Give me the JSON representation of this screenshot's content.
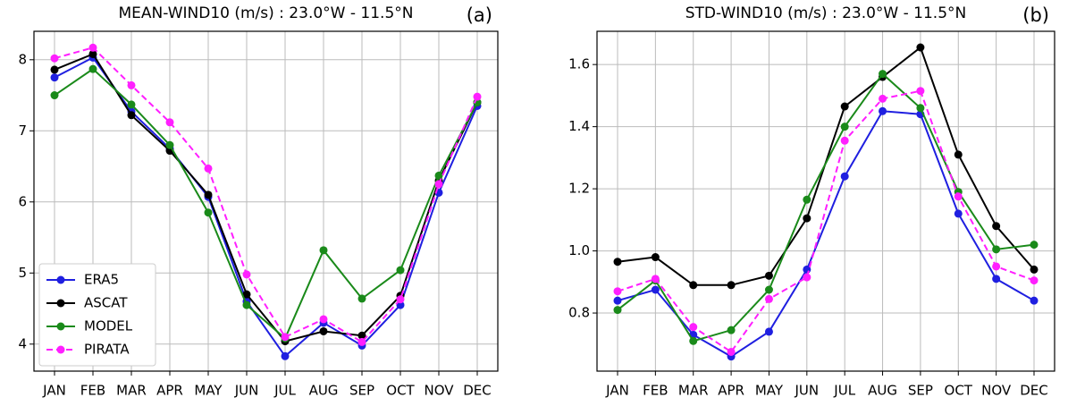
{
  "chart_data": [
    {
      "type": "line",
      "title": "MEAN-WIND10 (m/s) : 23.0°W - 11.5°N",
      "annotation": "(a)",
      "categories": [
        "JAN",
        "FEB",
        "MAR",
        "APR",
        "MAY",
        "JUN",
        "JUL",
        "AUG",
        "SEP",
        "OCT",
        "NOV",
        "DEC"
      ],
      "ylim": [
        3.62,
        8.4
      ],
      "yticks": [
        4,
        5,
        6,
        7,
        8
      ],
      "grid": true,
      "legend": "lower left",
      "series": [
        {
          "name": "ERA5",
          "color": "#1f1fe0",
          "linestyle": "solid",
          "values": [
            7.75,
            8.03,
            7.27,
            6.75,
            6.07,
            4.6,
            3.83,
            4.3,
            3.98,
            4.55,
            6.13,
            7.35
          ]
        },
        {
          "name": "ASCAT",
          "color": "#000000",
          "linestyle": "solid",
          "values": [
            7.86,
            8.08,
            7.22,
            6.72,
            6.1,
            4.7,
            4.04,
            4.18,
            4.12,
            4.68,
            6.3,
            7.4
          ]
        },
        {
          "name": "MODEL",
          "color": "#1a8a1a",
          "linestyle": "solid",
          "values": [
            7.5,
            7.87,
            7.37,
            6.8,
            5.85,
            4.55,
            4.08,
            5.32,
            4.64,
            5.04,
            6.37,
            7.4
          ]
        },
        {
          "name": "PIRATA",
          "color": "#ff1fff",
          "linestyle": "dashed",
          "values": [
            8.02,
            8.17,
            7.64,
            7.12,
            6.47,
            4.98,
            4.1,
            4.35,
            4.03,
            4.63,
            6.25,
            7.48
          ]
        }
      ]
    },
    {
      "type": "line",
      "title": "STD-WIND10 (m/s) : 23.0°W - 11.5°N",
      "annotation": "(b)",
      "categories": [
        "JAN",
        "FEB",
        "MAR",
        "APR",
        "MAY",
        "JUN",
        "JUL",
        "AUG",
        "SEP",
        "OCT",
        "NOV",
        "DEC"
      ],
      "ylim": [
        0.613,
        1.707
      ],
      "yticks": [
        0.8,
        {
          "value": 1.0,
          "label": "1.0"
        },
        1.2,
        1.4,
        1.6
      ],
      "grid": true,
      "series": [
        {
          "name": "ERA5",
          "color": "#1f1fe0",
          "linestyle": "solid",
          "values": [
            0.84,
            0.875,
            0.73,
            0.66,
            0.74,
            0.94,
            1.24,
            1.45,
            1.44,
            1.12,
            0.91,
            0.84
          ]
        },
        {
          "name": "ASCAT",
          "color": "#000000",
          "linestyle": "solid",
          "values": [
            0.965,
            0.98,
            0.89,
            0.89,
            0.92,
            1.105,
            1.465,
            1.56,
            1.655,
            1.31,
            1.08,
            0.94
          ]
        },
        {
          "name": "MODEL",
          "color": "#1a8a1a",
          "linestyle": "solid",
          "values": [
            0.81,
            0.905,
            0.71,
            0.745,
            0.875,
            1.165,
            1.4,
            1.57,
            1.46,
            1.19,
            1.005,
            1.02
          ]
        },
        {
          "name": "PIRATA",
          "color": "#ff1fff",
          "linestyle": "dashed",
          "values": [
            0.87,
            0.91,
            0.755,
            0.675,
            0.845,
            0.915,
            1.355,
            1.49,
            1.515,
            1.175,
            0.95,
            0.905
          ]
        }
      ]
    }
  ]
}
